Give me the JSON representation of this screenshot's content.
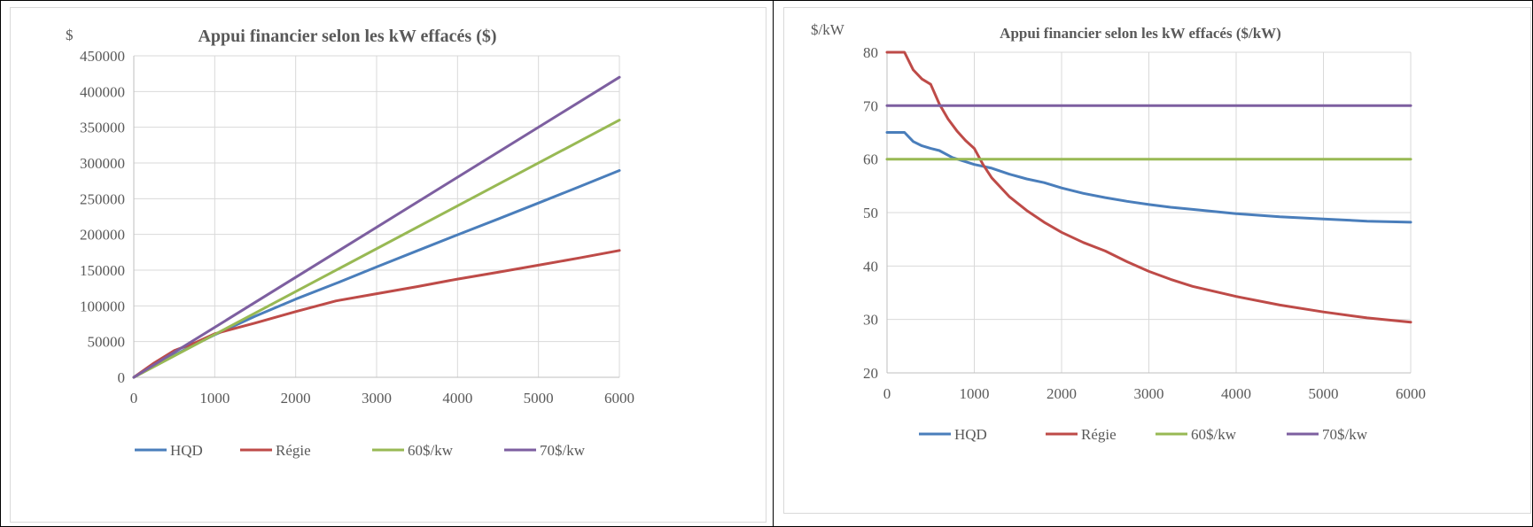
{
  "chart_data": [
    {
      "type": "line",
      "title": "Appui financier selon les kW effacés ($)",
      "ylabel": "$",
      "xlabel": "",
      "xlim": [
        0,
        6000
      ],
      "ylim": [
        0,
        450000
      ],
      "x_ticks": [
        0,
        1000,
        2000,
        3000,
        4000,
        5000,
        6000
      ],
      "y_ticks": [
        0,
        50000,
        100000,
        150000,
        200000,
        250000,
        300000,
        350000,
        400000,
        450000
      ],
      "grid": true,
      "legend_position": "bottom",
      "series": [
        {
          "name": "HQD",
          "color": "#4a7ebb",
          "points": [
            [
              0,
              0
            ],
            [
              250,
              16250
            ],
            [
              500,
              31000
            ],
            [
              750,
              45750
            ],
            [
              1000,
              59500
            ],
            [
              1500,
              85500
            ],
            [
              2000,
              109500
            ],
            [
              2500,
              131500
            ],
            [
              3000,
              154500
            ],
            [
              3500,
              177000
            ],
            [
              4000,
              199500
            ],
            [
              4500,
              221500
            ],
            [
              5000,
              244000
            ],
            [
              5500,
              266500
            ],
            [
              6000,
              289500
            ]
          ]
        },
        {
          "name": "Régie",
          "color": "#be4b48",
          "points": [
            [
              0,
              0
            ],
            [
              250,
              20000
            ],
            [
              500,
              37500
            ],
            [
              750,
              48000
            ],
            [
              1000,
              61000
            ],
            [
              1500,
              76000
            ],
            [
              2000,
              92000
            ],
            [
              2500,
              107000
            ],
            [
              3000,
              117000
            ],
            [
              3500,
              127000
            ],
            [
              4000,
              137500
            ],
            [
              4500,
              147000
            ],
            [
              5000,
              157000
            ],
            [
              5500,
              167000
            ],
            [
              6000,
              177500
            ]
          ]
        },
        {
          "name": "60$/kw",
          "color": "#98b954",
          "points": [
            [
              0,
              0
            ],
            [
              6000,
              360000
            ]
          ]
        },
        {
          "name": "70$/kw",
          "color": "#7d5fa0",
          "points": [
            [
              0,
              0
            ],
            [
              6000,
              420000
            ]
          ]
        }
      ]
    },
    {
      "type": "line",
      "title": "Appui financier selon les kW effacés ($/kW)",
      "ylabel": "$/kW",
      "xlabel": "",
      "xlim": [
        0,
        6000
      ],
      "ylim": [
        20,
        80
      ],
      "x_ticks": [
        0,
        1000,
        2000,
        3000,
        4000,
        5000,
        6000
      ],
      "y_ticks": [
        20,
        30,
        40,
        50,
        60,
        70,
        80
      ],
      "grid": true,
      "legend_position": "bottom",
      "series": [
        {
          "name": "HQD",
          "color": "#4a7ebb",
          "points": [
            [
              0,
              65
            ],
            [
              200,
              65
            ],
            [
              300,
              63.3
            ],
            [
              400,
              62.5
            ],
            [
              500,
              62
            ],
            [
              600,
              61.6
            ],
            [
              750,
              60.3
            ],
            [
              1000,
              59
            ],
            [
              1200,
              58.3
            ],
            [
              1400,
              57.2
            ],
            [
              1600,
              56.3
            ],
            [
              1800,
              55.6
            ],
            [
              2000,
              54.6
            ],
            [
              2250,
              53.6
            ],
            [
              2500,
              52.8
            ],
            [
              2750,
              52.1
            ],
            [
              3000,
              51.5
            ],
            [
              3250,
              51
            ],
            [
              3500,
              50.6
            ],
            [
              4000,
              49.8
            ],
            [
              4500,
              49.2
            ],
            [
              5000,
              48.8
            ],
            [
              5500,
              48.4
            ],
            [
              6000,
              48.2
            ]
          ]
        },
        {
          "name": "Régie",
          "color": "#be4b48",
          "points": [
            [
              0,
              80
            ],
            [
              200,
              80
            ],
            [
              300,
              76.7
            ],
            [
              400,
              75
            ],
            [
              500,
              74
            ],
            [
              600,
              70.3
            ],
            [
              700,
              67.5
            ],
            [
              800,
              65.3
            ],
            [
              900,
              63.5
            ],
            [
              1000,
              62
            ],
            [
              1100,
              59
            ],
            [
              1200,
              56.5
            ],
            [
              1400,
              53
            ],
            [
              1600,
              50.4
            ],
            [
              1800,
              48.2
            ],
            [
              2000,
              46.3
            ],
            [
              2250,
              44.4
            ],
            [
              2500,
              42.8
            ],
            [
              2750,
              40.8
            ],
            [
              3000,
              39
            ],
            [
              3250,
              37.5
            ],
            [
              3500,
              36.2
            ],
            [
              4000,
              34.3
            ],
            [
              4500,
              32.7
            ],
            [
              5000,
              31.4
            ],
            [
              5500,
              30.3
            ],
            [
              6000,
              29.5
            ]
          ]
        },
        {
          "name": "60$/kw",
          "color": "#98b954",
          "points": [
            [
              0,
              60
            ],
            [
              6000,
              60
            ]
          ]
        },
        {
          "name": "70$/kw",
          "color": "#7d5fa0",
          "points": [
            [
              0,
              70
            ],
            [
              6000,
              70
            ]
          ]
        }
      ]
    }
  ]
}
